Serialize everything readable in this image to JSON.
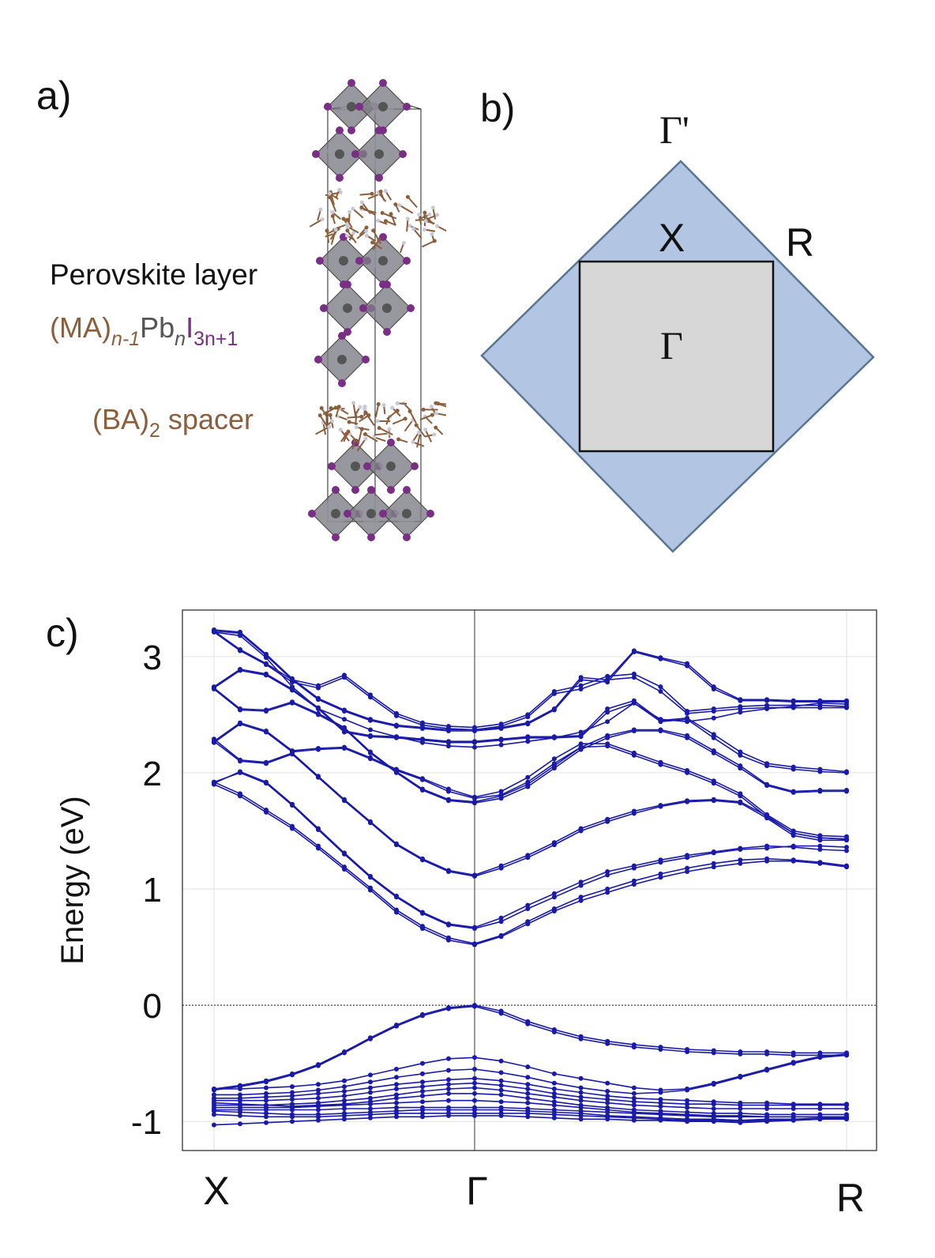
{
  "panel_a": {
    "label": "a)",
    "title": "Perovskite layer",
    "formula": {
      "ma": "(MA)",
      "ma_sub": "n-1",
      "pb": "Pb",
      "pb_sub": "n",
      "i": "I",
      "i_sub": "3n+1"
    },
    "spacer": {
      "ba": "(BA)",
      "ba_sub": "2",
      "word": "spacer"
    },
    "colors": {
      "organic": "#8b5e3c",
      "iodine": "#7a2e86",
      "lead": "#555555",
      "octahedra": "#7d7d85"
    }
  },
  "panel_b": {
    "label": "b)",
    "points": {
      "gamma_prime": "Γ'",
      "x": "X",
      "r": "R",
      "gamma": "Γ"
    },
    "colors": {
      "outer": "#b2c6e3",
      "outer_edge": "#5a7494",
      "inner": "#d7d7d7"
    }
  },
  "chart_data": {
    "type": "line",
    "label": "c)",
    "ylabel": "Energy (eV)",
    "ylim": [
      -1.25,
      3.4
    ],
    "yticks": [
      -1,
      0,
      1,
      2,
      3
    ],
    "ytick_labels": [
      "-1",
      "0",
      "1",
      "2",
      "3"
    ],
    "kpath": [
      0,
      10,
      24
    ],
    "kpath_labels": [
      "X",
      "Γ",
      "R"
    ],
    "fermi_level": 0,
    "line_color": "#1a1aa8",
    "series": [
      {
        "name": "cb1",
        "values": [
          1.9,
          1.8,
          1.66,
          1.52,
          1.35,
          1.17,
          0.99,
          0.8,
          0.66,
          0.56,
          0.52,
          0.59,
          0.7,
          0.81,
          0.9,
          0.97,
          1.04,
          1.1,
          1.15,
          1.19,
          1.22,
          1.24,
          1.24,
          1.22,
          1.19
        ]
      },
      {
        "name": "cb2",
        "values": [
          1.92,
          1.82,
          1.68,
          1.54,
          1.37,
          1.19,
          1.01,
          0.82,
          0.68,
          0.58,
          0.53,
          0.6,
          0.72,
          0.83,
          0.93,
          1.0,
          1.07,
          1.13,
          1.18,
          1.22,
          1.25,
          1.26,
          1.25,
          1.23,
          1.2
        ]
      },
      {
        "name": "cb3",
        "values": [
          1.91,
          2.01,
          1.92,
          1.73,
          1.52,
          1.31,
          1.11,
          0.94,
          0.8,
          0.7,
          0.67,
          0.75,
          0.86,
          0.96,
          1.06,
          1.15,
          1.2,
          1.25,
          1.29,
          1.32,
          1.35,
          1.37,
          1.36,
          1.34,
          1.33
        ]
      },
      {
        "name": "cb4",
        "values": [
          1.92,
          2.0,
          1.91,
          1.72,
          1.51,
          1.3,
          1.1,
          0.93,
          0.79,
          0.69,
          0.66,
          0.72,
          0.83,
          0.93,
          1.03,
          1.12,
          1.18,
          1.23,
          1.27,
          1.31,
          1.34,
          1.35,
          1.37,
          1.37,
          1.36
        ]
      },
      {
        "name": "cb5",
        "values": [
          2.27,
          2.1,
          2.08,
          2.16,
          1.96,
          1.76,
          1.57,
          1.38,
          1.25,
          1.15,
          1.11,
          1.18,
          1.27,
          1.38,
          1.5,
          1.58,
          1.65,
          1.71,
          1.75,
          1.76,
          1.74,
          1.61,
          1.46,
          1.42,
          1.42
        ]
      },
      {
        "name": "cb6",
        "values": [
          2.29,
          2.11,
          2.09,
          2.17,
          1.97,
          1.77,
          1.58,
          1.39,
          1.26,
          1.16,
          1.12,
          1.2,
          1.29,
          1.4,
          1.52,
          1.6,
          1.67,
          1.72,
          1.76,
          1.77,
          1.75,
          1.63,
          1.48,
          1.44,
          1.43
        ]
      },
      {
        "name": "cb7",
        "values": [
          2.26,
          2.42,
          2.35,
          2.18,
          2.2,
          2.21,
          2.12,
          2.02,
          1.94,
          1.84,
          1.78,
          1.81,
          1.92,
          2.08,
          2.22,
          2.23,
          2.15,
          2.07,
          2.0,
          1.91,
          1.8,
          1.62,
          1.48,
          1.44,
          1.43
        ]
      },
      {
        "name": "cb8",
        "values": [
          2.27,
          2.43,
          2.36,
          2.19,
          2.21,
          2.22,
          2.13,
          2.03,
          1.95,
          1.86,
          1.79,
          1.84,
          1.96,
          2.12,
          2.25,
          2.25,
          2.17,
          2.09,
          2.02,
          1.93,
          1.82,
          1.64,
          1.5,
          1.46,
          1.45
        ]
      },
      {
        "name": "cb9",
        "values": [
          2.72,
          2.54,
          2.53,
          2.6,
          2.5,
          2.38,
          2.17,
          2.0,
          1.85,
          1.76,
          1.74,
          1.78,
          1.88,
          2.04,
          2.2,
          2.3,
          2.36,
          2.36,
          2.3,
          2.17,
          2.04,
          1.89,
          1.83,
          1.84,
          1.84
        ]
      },
      {
        "name": "cb10",
        "values": [
          2.73,
          2.55,
          2.54,
          2.61,
          2.51,
          2.39,
          2.18,
          2.01,
          1.86,
          1.77,
          1.75,
          1.8,
          1.9,
          2.06,
          2.22,
          2.32,
          2.37,
          2.37,
          2.32,
          2.19,
          2.06,
          1.9,
          1.84,
          1.85,
          1.85
        ]
      },
      {
        "name": "cb11",
        "values": [
          2.73,
          2.88,
          2.84,
          2.71,
          2.55,
          2.35,
          2.31,
          2.3,
          2.28,
          2.26,
          2.26,
          2.28,
          2.3,
          2.3,
          2.31,
          2.52,
          2.6,
          2.44,
          2.46,
          2.3,
          2.15,
          2.06,
          2.03,
          2.01,
          2.0
        ]
      },
      {
        "name": "cb12",
        "values": [
          2.74,
          2.89,
          2.85,
          2.72,
          2.56,
          2.36,
          2.32,
          2.31,
          2.29,
          2.27,
          2.27,
          2.29,
          2.31,
          2.31,
          2.32,
          2.55,
          2.62,
          2.45,
          2.47,
          2.33,
          2.18,
          2.08,
          2.05,
          2.03,
          2.01
        ]
      },
      {
        "name": "cb13",
        "values": [
          3.21,
          3.05,
          2.93,
          2.78,
          2.73,
          2.82,
          2.65,
          2.49,
          2.41,
          2.38,
          2.37,
          2.4,
          2.48,
          2.68,
          2.72,
          2.8,
          2.82,
          2.7,
          2.51,
          2.53,
          2.55,
          2.56,
          2.56,
          2.56,
          2.56
        ]
      },
      {
        "name": "cb14",
        "values": [
          3.22,
          3.06,
          2.94,
          2.8,
          2.75,
          2.84,
          2.67,
          2.51,
          2.43,
          2.4,
          2.39,
          2.42,
          2.5,
          2.7,
          2.75,
          2.83,
          2.85,
          2.74,
          2.53,
          2.55,
          2.57,
          2.58,
          2.58,
          2.58,
          2.57
        ]
      },
      {
        "name": "cb15",
        "values": [
          3.21,
          3.18,
          2.99,
          2.74,
          2.55,
          2.46,
          2.37,
          2.31,
          2.26,
          2.23,
          2.22,
          2.24,
          2.27,
          2.3,
          2.35,
          2.44,
          2.6,
          2.46,
          2.44,
          2.47,
          2.52,
          2.55,
          2.57,
          2.6,
          2.59
        ]
      },
      {
        "name": "cb16",
        "values": [
          3.22,
          3.2,
          3.01,
          2.8,
          2.63,
          2.53,
          2.45,
          2.4,
          2.38,
          2.36,
          2.36,
          2.38,
          2.42,
          2.54,
          2.8,
          2.78,
          3.04,
          2.98,
          2.92,
          2.72,
          2.62,
          2.62,
          2.61,
          2.61,
          2.61
        ]
      },
      {
        "name": "cb17",
        "values": [
          3.23,
          3.21,
          3.02,
          2.81,
          2.64,
          2.54,
          2.46,
          2.41,
          2.39,
          2.37,
          2.37,
          2.39,
          2.43,
          2.55,
          2.82,
          2.8,
          3.05,
          2.99,
          2.94,
          2.74,
          2.63,
          2.63,
          2.62,
          2.62,
          2.62
        ]
      },
      {
        "name": "vb1",
        "values": [
          -0.72,
          -0.69,
          -0.65,
          -0.59,
          -0.51,
          -0.4,
          -0.28,
          -0.17,
          -0.08,
          -0.02,
          0.0,
          -0.05,
          -0.14,
          -0.21,
          -0.27,
          -0.31,
          -0.34,
          -0.36,
          -0.38,
          -0.39,
          -0.4,
          -0.4,
          -0.41,
          -0.41,
          -0.41
        ]
      },
      {
        "name": "vb2",
        "values": [
          -0.73,
          -0.7,
          -0.66,
          -0.6,
          -0.52,
          -0.41,
          -0.29,
          -0.18,
          -0.09,
          -0.03,
          -0.01,
          -0.07,
          -0.16,
          -0.23,
          -0.29,
          -0.33,
          -0.36,
          -0.38,
          -0.4,
          -0.41,
          -0.42,
          -0.42,
          -0.43,
          -0.43,
          -0.43
        ]
      },
      {
        "name": "vb3",
        "values": [
          -0.72,
          -0.72,
          -0.71,
          -0.7,
          -0.68,
          -0.65,
          -0.6,
          -0.55,
          -0.5,
          -0.46,
          -0.45,
          -0.48,
          -0.53,
          -0.59,
          -0.63,
          -0.67,
          -0.71,
          -0.73,
          -0.72,
          -0.67,
          -0.61,
          -0.55,
          -0.49,
          -0.44,
          -0.42
        ]
      },
      {
        "name": "vb4",
        "values": [
          -0.77,
          -0.77,
          -0.76,
          -0.75,
          -0.73,
          -0.7,
          -0.66,
          -0.62,
          -0.59,
          -0.56,
          -0.55,
          -0.58,
          -0.62,
          -0.67,
          -0.71,
          -0.74,
          -0.76,
          -0.75,
          -0.73,
          -0.68,
          -0.62,
          -0.56,
          -0.5,
          -0.45,
          -0.43
        ]
      },
      {
        "name": "vb5",
        "values": [
          -0.8,
          -0.8,
          -0.79,
          -0.78,
          -0.76,
          -0.74,
          -0.71,
          -0.68,
          -0.66,
          -0.64,
          -0.63,
          -0.65,
          -0.68,
          -0.72,
          -0.75,
          -0.78,
          -0.8,
          -0.81,
          -0.82,
          -0.83,
          -0.84,
          -0.84,
          -0.85,
          -0.85,
          -0.85
        ]
      },
      {
        "name": "vb6",
        "values": [
          -0.82,
          -0.82,
          -0.82,
          -0.81,
          -0.8,
          -0.78,
          -0.75,
          -0.72,
          -0.7,
          -0.68,
          -0.67,
          -0.69,
          -0.72,
          -0.76,
          -0.79,
          -0.81,
          -0.83,
          -0.84,
          -0.85,
          -0.85,
          -0.86,
          -0.86,
          -0.86,
          -0.86,
          -0.86
        ]
      },
      {
        "name": "vb7",
        "values": [
          -0.86,
          -0.86,
          -0.86,
          -0.85,
          -0.84,
          -0.82,
          -0.8,
          -0.77,
          -0.74,
          -0.72,
          -0.71,
          -0.73,
          -0.76,
          -0.79,
          -0.82,
          -0.84,
          -0.86,
          -0.87,
          -0.88,
          -0.89,
          -0.89,
          -0.89,
          -0.89,
          -0.89,
          -0.89
        ]
      },
      {
        "name": "vb8",
        "values": [
          -0.84,
          -0.85,
          -0.86,
          -0.87,
          -0.86,
          -0.85,
          -0.83,
          -0.8,
          -0.78,
          -0.76,
          -0.76,
          -0.77,
          -0.8,
          -0.83,
          -0.86,
          -0.88,
          -0.9,
          -0.91,
          -0.92,
          -0.93,
          -0.93,
          -0.94,
          -0.94,
          -0.94,
          -0.94
        ]
      },
      {
        "name": "vb9",
        "values": [
          -0.88,
          -0.88,
          -0.88,
          -0.88,
          -0.87,
          -0.86,
          -0.85,
          -0.84,
          -0.83,
          -0.82,
          -0.82,
          -0.83,
          -0.84,
          -0.86,
          -0.88,
          -0.9,
          -0.92,
          -0.93,
          -0.94,
          -0.95,
          -0.95,
          -0.96,
          -0.96,
          -0.96,
          -0.96
        ]
      },
      {
        "name": "vb10",
        "values": [
          -0.9,
          -0.9,
          -0.9,
          -0.9,
          -0.9,
          -0.89,
          -0.89,
          -0.88,
          -0.88,
          -0.88,
          -0.88,
          -0.88,
          -0.89,
          -0.9,
          -0.91,
          -0.92,
          -0.93,
          -0.94,
          -0.95,
          -0.96,
          -0.96,
          -0.96,
          -0.96,
          -0.96,
          -0.96
        ]
      },
      {
        "name": "vb11",
        "values": [
          -0.91,
          -0.92,
          -0.93,
          -0.94,
          -0.94,
          -0.93,
          -0.92,
          -0.91,
          -0.9,
          -0.9,
          -0.9,
          -0.9,
          -0.91,
          -0.92,
          -0.93,
          -0.95,
          -0.96,
          -0.97,
          -0.98,
          -0.98,
          -0.99,
          -0.98,
          -0.98,
          -0.97,
          -0.97
        ]
      },
      {
        "name": "vb12",
        "values": [
          -0.94,
          -0.95,
          -0.96,
          -0.96,
          -0.96,
          -0.95,
          -0.94,
          -0.93,
          -0.93,
          -0.93,
          -0.93,
          -0.93,
          -0.93,
          -0.94,
          -0.95,
          -0.96,
          -0.97,
          -0.98,
          -0.99,
          -0.99,
          -1.0,
          -0.99,
          -0.99,
          -0.98,
          -0.98
        ]
      },
      {
        "name": "vb13",
        "values": [
          -1.03,
          -1.02,
          -1.01,
          -1.0,
          -0.99,
          -0.98,
          -0.97,
          -0.96,
          -0.96,
          -0.95,
          -0.95,
          -0.95,
          -0.96,
          -0.97,
          -0.98,
          -0.98,
          -0.99,
          -0.99,
          -1.0,
          -1.0,
          -1.01,
          -1.0,
          -0.99,
          -0.98,
          -0.97
        ]
      }
    ]
  }
}
